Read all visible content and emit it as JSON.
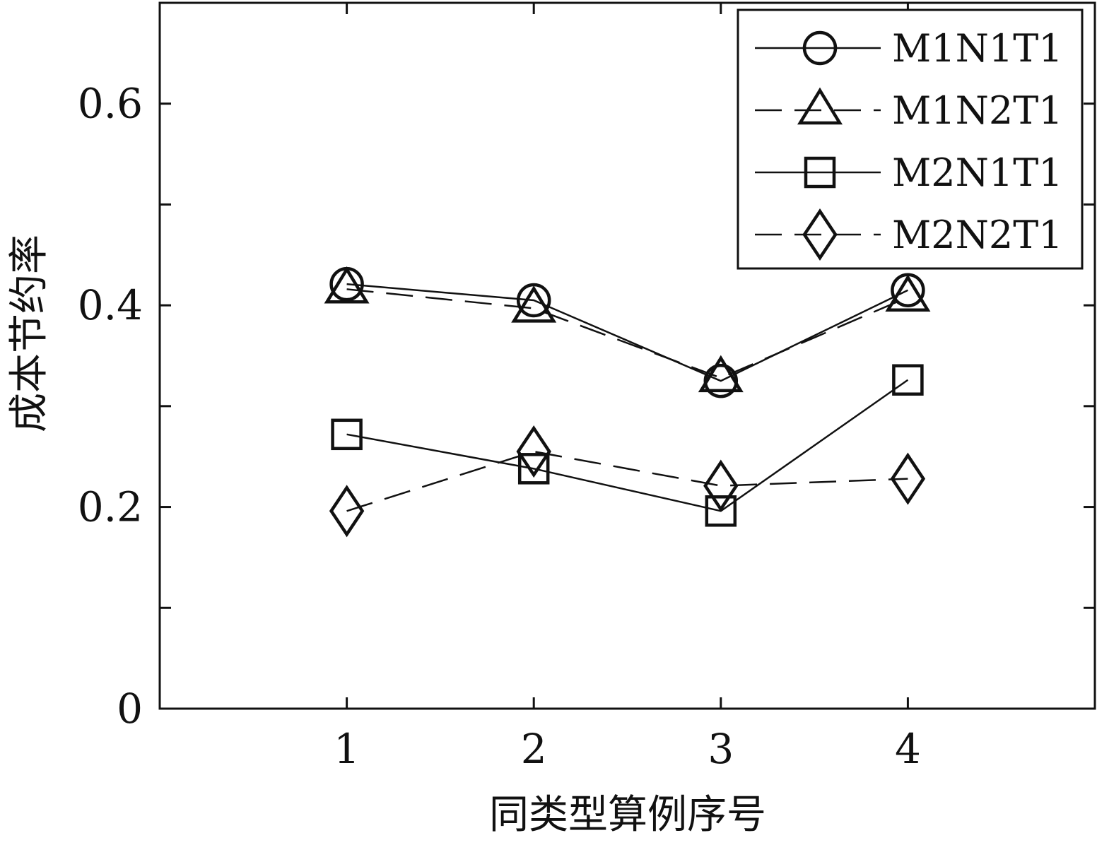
{
  "chart_data": {
    "type": "line",
    "title": "",
    "xlabel": "同类型算例序号",
    "ylabel": "成本节约率",
    "x": [
      1,
      2,
      3,
      4
    ],
    "xlim": [
      0,
      5
    ],
    "ylim": [
      0,
      0.7
    ],
    "xticks": [
      1,
      2,
      3,
      4
    ],
    "yticks": [
      0,
      0.1,
      0.2,
      0.3,
      0.4,
      0.5,
      0.6
    ],
    "yticklabels": [
      "0",
      "",
      "0.2",
      "",
      "0.4",
      "",
      "0.6"
    ],
    "grid": false,
    "legend_position": "top-right",
    "series": [
      {
        "name": "M1N1T1",
        "values": [
          0.421,
          0.405,
          0.325,
          0.415
        ],
        "marker": "circle",
        "line_style": "solid"
      },
      {
        "name": "M1N2T1",
        "values": [
          0.416,
          0.397,
          0.328,
          0.408
        ],
        "marker": "triangle",
        "line_style": "dashed"
      },
      {
        "name": "M2N1T1",
        "values": [
          0.272,
          0.238,
          0.196,
          0.326
        ],
        "marker": "square",
        "line_style": "solid"
      },
      {
        "name": "M2N2T1",
        "values": [
          0.196,
          0.255,
          0.221,
          0.228
        ],
        "marker": "diamond",
        "line_style": "dashed"
      }
    ],
    "colors": {
      "line": "#111111",
      "background": "#ffffff"
    }
  }
}
